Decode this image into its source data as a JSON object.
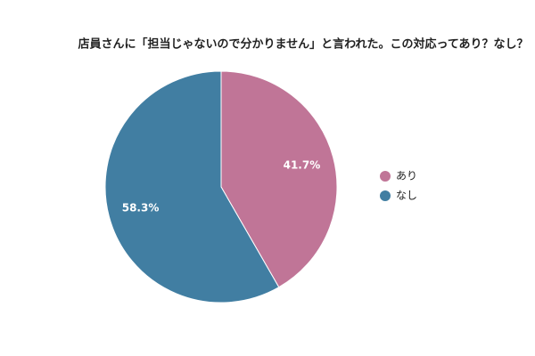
{
  "chart_data": {
    "type": "pie",
    "title": "店員さんに「担当じゃないので分かりません」と言われた。この対応ってあり？なし？",
    "categories": [
      "あり",
      "なし"
    ],
    "values": [
      41.7,
      58.3
    ],
    "value_labels": [
      "41.7%",
      "58.3%"
    ],
    "colors": [
      "#c07597",
      "#417ea2"
    ],
    "legend": "right"
  }
}
